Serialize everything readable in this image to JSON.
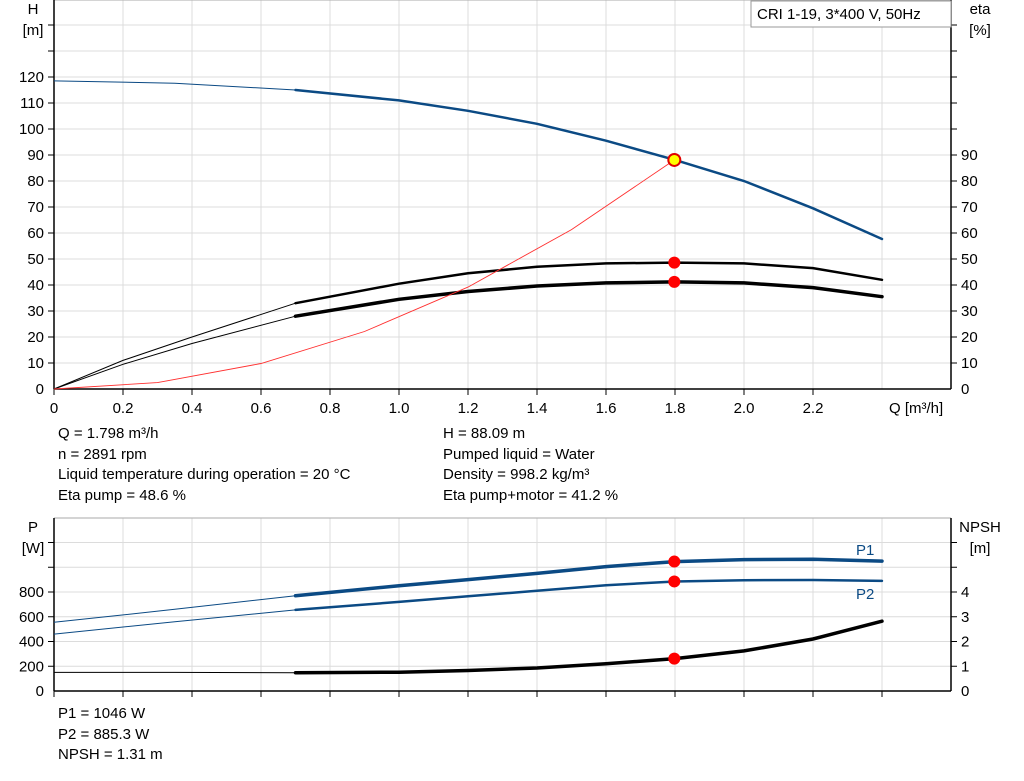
{
  "chart_data": [
    {
      "type": "line",
      "title": "CRI 1-19, 3*400 V, 50Hz",
      "xlabel": "Q [m³/h]",
      "xlim": [
        0,
        2.6
      ],
      "x_ticks": [
        "0",
        "0.2",
        "0.4",
        "0.6",
        "0.8",
        "1.0",
        "1.2",
        "1.4",
        "1.6",
        "1.8",
        "2.0",
        "2.2"
      ],
      "ylabel_left": [
        "H",
        "[m]"
      ],
      "ylim_left": [
        0,
        150
      ],
      "y_ticks_left": [
        "0",
        "10",
        "20",
        "30",
        "40",
        "50",
        "60",
        "70",
        "80",
        "90",
        "100",
        "110",
        "120"
      ],
      "ylabel_right": [
        "eta",
        "[%]"
      ],
      "y_ticks_right": [
        "0",
        "10",
        "20",
        "30",
        "40",
        "50",
        "60",
        "70",
        "80",
        "90"
      ],
      "grid": true,
      "series": [
        {
          "axis": "left",
          "color": "#0b4a84",
          "x": [
            0,
            0.35,
            0.7,
            1.0,
            1.2,
            1.4,
            1.6,
            1.8,
            2.0,
            2.2,
            2.4
          ],
          "y": [
            118.5,
            117.6,
            115,
            111,
            107,
            102,
            95.5,
            88.1,
            80,
            69.5,
            57.7
          ],
          "thin_until": 0.7
        },
        {
          "axis": "right",
          "color": "#000000",
          "x": [
            0,
            0.2,
            0.4,
            0.7,
            1.0,
            1.2,
            1.4,
            1.6,
            1.8,
            2.0,
            2.2,
            2.4
          ],
          "y": [
            0,
            11,
            20,
            33,
            40.5,
            44.5,
            47,
            48.3,
            48.6,
            48.3,
            46.5,
            42
          ],
          "thin_until": 0.7
        },
        {
          "axis": "right",
          "color": "#000000",
          "x": [
            0,
            0.2,
            0.4,
            0.7,
            1.0,
            1.2,
            1.4,
            1.6,
            1.8,
            2.0,
            2.2,
            2.4
          ],
          "y": [
            0,
            9.5,
            17.5,
            28,
            34.5,
            37.5,
            39.6,
            40.8,
            41.2,
            40.8,
            39,
            35.5
          ],
          "thin_until": 0.7,
          "thick": true
        },
        {
          "axis": "left",
          "color": "#ff3030",
          "x": [
            0,
            0.3,
            0.6,
            0.9,
            1.2,
            1.5,
            1.798
          ],
          "y": [
            0,
            2.45,
            9.8,
            22.1,
            39.2,
            61.3,
            88.09
          ],
          "thin_until": 99
        }
      ],
      "duty_points": [
        {
          "x": 1.798,
          "y": 88.09,
          "axis": "left",
          "color": "#ffff00"
        },
        {
          "x": 1.798,
          "y": 48.6,
          "axis": "right",
          "color": "#ff0000"
        },
        {
          "x": 1.798,
          "y": 41.2,
          "axis": "right",
          "color": "#ff0000"
        }
      ]
    },
    {
      "type": "line",
      "xlim": [
        0,
        2.6
      ],
      "ylabel_left": [
        "P",
        "[W]"
      ],
      "ylim_left": [
        0,
        1400
      ],
      "y_ticks_left": [
        "0",
        "200",
        "400",
        "600",
        "800"
      ],
      "ylabel_right": [
        "NPSH",
        "[m]"
      ],
      "ylim_right": [
        0,
        7
      ],
      "y_ticks_right": [
        "0",
        "1",
        "2",
        "3",
        "4"
      ],
      "grid": true,
      "series": [
        {
          "name": "P1",
          "axis": "left",
          "color": "#0b4a84",
          "x": [
            0,
            0.35,
            0.7,
            1.0,
            1.2,
            1.4,
            1.6,
            1.8,
            2.0,
            2.2,
            2.4
          ],
          "y": [
            555,
            660,
            770,
            850,
            900,
            950,
            1005,
            1046,
            1062,
            1064,
            1050
          ],
          "thin_until": 0.7,
          "thick": true
        },
        {
          "name": "P2",
          "axis": "left",
          "color": "#0b4a84",
          "x": [
            0,
            0.35,
            0.7,
            1.0,
            1.2,
            1.4,
            1.6,
            1.8,
            2.0,
            2.2,
            2.4
          ],
          "y": [
            460,
            560,
            655,
            720,
            765,
            810,
            855,
            885,
            895,
            897,
            890
          ],
          "thin_until": 0.7
        },
        {
          "axis": "right",
          "color": "#000000",
          "x": [
            0,
            0.35,
            0.7,
            1.0,
            1.2,
            1.4,
            1.6,
            1.8,
            2.0,
            2.2,
            2.4
          ],
          "y": [
            0.75,
            0.75,
            0.74,
            0.76,
            0.83,
            0.93,
            1.1,
            1.31,
            1.62,
            2.1,
            2.82
          ],
          "thin_until": 0.7,
          "thick": true
        }
      ],
      "duty_points": [
        {
          "x": 1.798,
          "y": 1046,
          "axis": "left",
          "color": "#ff0000"
        },
        {
          "x": 1.798,
          "y": 885.3,
          "axis": "left",
          "color": "#ff0000"
        },
        {
          "x": 1.798,
          "y": 1.31,
          "axis": "right",
          "color": "#ff0000"
        }
      ]
    }
  ],
  "info_top": {
    "left": [
      "Q = 1.798 m³/h",
      "n = 2891 rpm",
      "Liquid temperature during operation = 20 °C",
      "Eta pump = 48.6 %"
    ],
    "right": [
      "H = 88.09 m",
      "Pumped liquid = Water",
      "Density = 998.2 kg/m³",
      "Eta pump+motor = 41.2 %"
    ]
  },
  "info_bottom": [
    "P1 = 1046 W",
    "P2 = 885.3 W",
    "NPSH = 1.31 m"
  ]
}
